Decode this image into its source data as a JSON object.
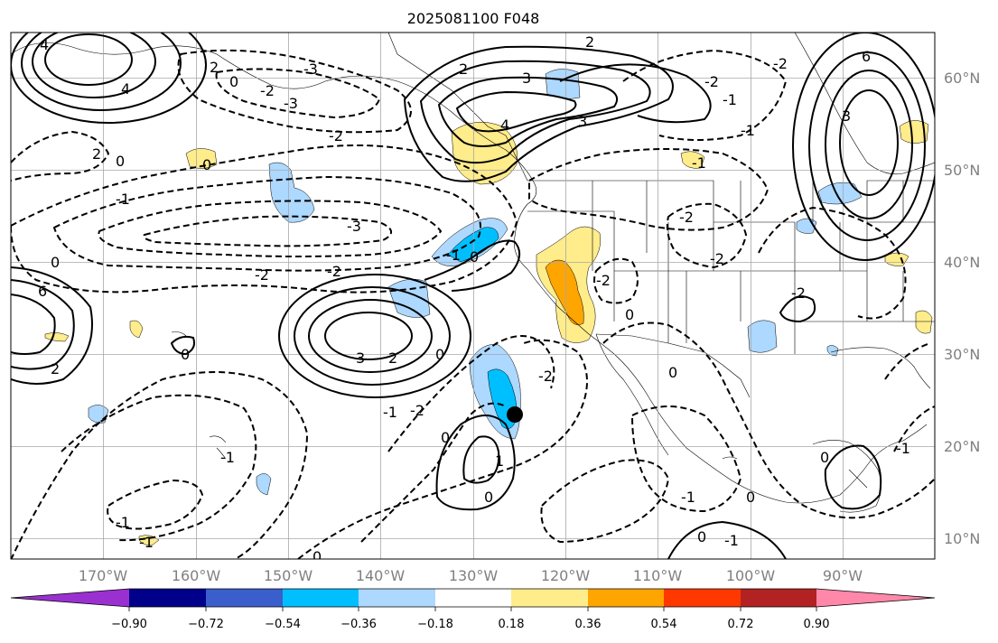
{
  "title": "2025081100 F048",
  "latitude_labels": [
    "60°N",
    "50°N",
    "40°N",
    "30°N",
    "20°N",
    "10°N"
  ],
  "longitude_labels": [
    "170°W",
    "160°W",
    "150°W",
    "140°W",
    "130°W",
    "120°W",
    "110°W",
    "100°W",
    "90°W"
  ],
  "colorbar": {
    "colors": [
      "#9b30d0",
      "#00008b",
      "#3a5fcd",
      "#00bfff",
      "#add8ff",
      "#ffffff",
      "#ffec8b",
      "#ffa500",
      "#ff3800",
      "#b22222",
      "#ff88aa"
    ],
    "tick_labels": [
      "−0.90",
      "−0.72",
      "−0.54",
      "−0.36",
      "−0.18",
      "0.18",
      "0.36",
      "0.54",
      "0.72",
      "0.90"
    ]
  },
  "contour_labels": [
    "4",
    "4",
    "6",
    "2",
    "2",
    "0",
    "0",
    "-1",
    "-2",
    "-3",
    "-2",
    "-2",
    "0",
    "0",
    "2",
    "3",
    "4",
    "3",
    "2",
    "-1",
    "0",
    "-2",
    "-1",
    "-2",
    "0",
    "1",
    "0",
    "3",
    "-1",
    "0",
    "-1",
    "-1",
    "0",
    "-1",
    "-2",
    "-1",
    "-2",
    "-2",
    "0",
    "0",
    "0",
    "-1",
    "-2",
    "-2",
    "2",
    "6",
    "3",
    "2",
    "0",
    "0",
    "-1",
    "-2",
    "-3",
    "-2",
    "-3",
    "0",
    "-1",
    "-1"
  ],
  "marker": {
    "lat": 23.5,
    "lon": -125.8
  }
}
